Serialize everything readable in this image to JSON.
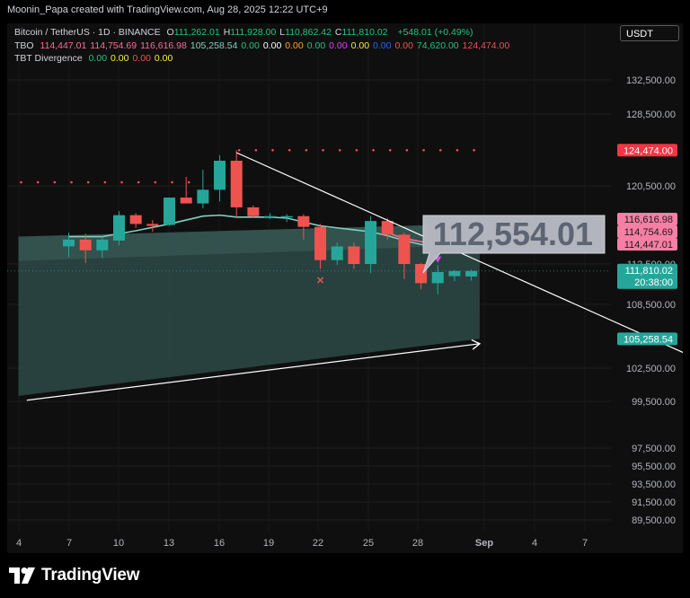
{
  "header": {
    "attribution": "Moonin_Papa created with TradingView.com, Aug 28, 2025 12:22 UTC+9"
  },
  "legend": {
    "symbol": "Bitcoin / TetherUS · 1D · BINANCE",
    "ohlc": [
      {
        "label": "O",
        "value": "111,262.01"
      },
      {
        "label": "H",
        "value": "111,928.00"
      },
      {
        "label": "L",
        "value": "110,862.42"
      },
      {
        "label": "C",
        "value": "111,810.02"
      }
    ],
    "change": "+548.01 (+0.49%)",
    "tbo": {
      "name": "TBO",
      "values": [
        {
          "text": "114,447.01",
          "color": "#ff6b9a"
        },
        {
          "text": "114,754.69",
          "color": "#ff6b9a"
        },
        {
          "text": "116,616.98",
          "color": "#ff6b9a"
        },
        {
          "text": "105,258.54",
          "color": "#7dd3c0"
        },
        {
          "text": "0.00",
          "color": "#26c281"
        },
        {
          "text": "0.00",
          "color": "#ffffff"
        },
        {
          "text": "0.00",
          "color": "#f5a623"
        },
        {
          "text": "0.00",
          "color": "#26c281"
        },
        {
          "text": "0.00",
          "color": "#e040fb"
        },
        {
          "text": "0.00",
          "color": "#ffeb3b"
        },
        {
          "text": "0.00",
          "color": "#2962ff"
        },
        {
          "text": "0.00",
          "color": "#ef5350"
        },
        {
          "text": "74,620.00",
          "color": "#26c281"
        },
        {
          "text": "124,474.00",
          "color": "#ef5350"
        }
      ]
    },
    "divergence": {
      "name": "TBT Divergence",
      "values": [
        {
          "text": "0.00",
          "color": "#26c281"
        },
        {
          "text": "0.00",
          "color": "#ffeb3b"
        },
        {
          "text": "0.00",
          "color": "#ef5350"
        },
        {
          "text": "0.00",
          "color": "#ffeb3b"
        }
      ]
    }
  },
  "currency_button": "USDT",
  "brand": "TradingView",
  "colors": {
    "up": "#26a69a",
    "down": "#ef5350",
    "teal_line": "#7dd3c0",
    "pink_line": "#ff6b9a",
    "cloud": "#3a5a57",
    "price_label_up": "#26a69a",
    "price_label_pink": "#f77fa6",
    "price_label_red": "#f23645",
    "callout_bg": "#b2b5be",
    "callout_text": "#5d6573"
  },
  "chart_data": {
    "type": "candlestick",
    "symbol": "Bitcoin / TetherUS",
    "interval": "1D",
    "exchange": "BINANCE",
    "x_labels": [
      "4",
      "7",
      "10",
      "13",
      "16",
      "19",
      "22",
      "25",
      "28",
      "Sep",
      "4",
      "7"
    ],
    "y_ticks": [
      "132,500.00",
      "128,500.00",
      "120,500.00",
      "112,500.00",
      "108,500.00",
      "102,500.00",
      "99,500.00",
      "97,500.00",
      "95,500.00",
      "93,500.00",
      "91,500.00",
      "89,500.00"
    ],
    "price_labels": [
      {
        "text": "124,474.00",
        "price": 124474,
        "style": "red"
      },
      {
        "text": "116,616.98",
        "price": 116617,
        "style": "pink"
      },
      {
        "text": "114,754.69",
        "price": 114755,
        "style": "pink"
      },
      {
        "text": "114,447.01",
        "price": 114447,
        "style": "pink"
      },
      {
        "text": "111,810.02",
        "price": 111810,
        "style": "up",
        "countdown": "20:38:00"
      },
      {
        "text": "105,258.54",
        "price": 105259,
        "style": "up"
      }
    ],
    "callout": {
      "text": "112,554.01",
      "price": 112554
    },
    "candles": [
      {
        "d": 3,
        "o": 114300,
        "h": 115700,
        "l": 113200,
        "c": 115000
      },
      {
        "d": 4,
        "o": 115000,
        "h": 115600,
        "l": 112600,
        "c": 113900
      },
      {
        "d": 5,
        "o": 113900,
        "h": 115300,
        "l": 113100,
        "c": 115000
      },
      {
        "d": 6,
        "o": 114900,
        "h": 117900,
        "l": 114400,
        "c": 117500
      },
      {
        "d": 7,
        "o": 117500,
        "h": 117700,
        "l": 116200,
        "c": 116600
      },
      {
        "d": 8,
        "o": 116600,
        "h": 117000,
        "l": 115800,
        "c": 116400
      },
      {
        "d": 9,
        "o": 116500,
        "h": 119300,
        "l": 116400,
        "c": 119300
      },
      {
        "d": 10,
        "o": 119300,
        "h": 121500,
        "l": 118700,
        "c": 118700
      },
      {
        "d": 11,
        "o": 118700,
        "h": 122300,
        "l": 118200,
        "c": 120100
      },
      {
        "d": 12,
        "o": 120100,
        "h": 123900,
        "l": 118900,
        "c": 123300
      },
      {
        "d": 13,
        "o": 123300,
        "h": 124474,
        "l": 117200,
        "c": 118300
      },
      {
        "d": 14,
        "o": 118300,
        "h": 118500,
        "l": 117200,
        "c": 117400
      },
      {
        "d": 15,
        "o": 117400,
        "h": 117700,
        "l": 117100,
        "c": 117400
      },
      {
        "d": 16,
        "o": 117400,
        "h": 117600,
        "l": 116800,
        "c": 117400
      },
      {
        "d": 17,
        "o": 117400,
        "h": 117600,
        "l": 115000,
        "c": 116300
      },
      {
        "d": 18,
        "o": 116300,
        "h": 116600,
        "l": 112000,
        "c": 112900
      },
      {
        "d": 19,
        "o": 112900,
        "h": 114700,
        "l": 112400,
        "c": 114300
      },
      {
        "d": 20,
        "o": 114300,
        "h": 114700,
        "l": 112000,
        "c": 112500
      },
      {
        "d": 21,
        "o": 112500,
        "h": 117400,
        "l": 111600,
        "c": 116900
      },
      {
        "d": 22,
        "o": 116900,
        "h": 117200,
        "l": 115000,
        "c": 115500
      },
      {
        "d": 23,
        "o": 115500,
        "h": 115700,
        "l": 111000,
        "c": 112500
      },
      {
        "d": 24,
        "o": 112500,
        "h": 112600,
        "l": 110000,
        "c": 110600
      },
      {
        "d": 25,
        "o": 110600,
        "h": 112400,
        "l": 109500,
        "c": 111700
      },
      {
        "d": 26,
        "o": 111300,
        "h": 111900,
        "l": 110800,
        "c": 111800
      },
      {
        "d": 27,
        "o": 111262,
        "h": 111928,
        "l": 110862,
        "c": 111810
      }
    ],
    "teal_line": [
      [
        3,
        115300
      ],
      [
        5,
        115300
      ],
      [
        7,
        115900
      ],
      [
        9,
        116600
      ],
      [
        10,
        117000
      ],
      [
        11,
        117400
      ],
      [
        12,
        117500
      ],
      [
        13,
        117300
      ],
      [
        15,
        117300
      ],
      [
        16,
        117200
      ],
      [
        17,
        116800
      ],
      [
        18,
        116400
      ],
      [
        19,
        116200
      ],
      [
        20,
        116000
      ],
      [
        21,
        115800
      ],
      [
        22,
        115400
      ],
      [
        23,
        114900
      ],
      [
        24,
        114500
      ],
      [
        25,
        114200
      ],
      [
        26,
        114000
      ],
      [
        27,
        113700
      ]
    ],
    "pink_line": [
      [
        22,
        115700
      ],
      [
        23,
        115100
      ],
      [
        24,
        114800
      ],
      [
        25,
        114550
      ],
      [
        26,
        114450
      ],
      [
        27,
        114447
      ]
    ],
    "red_dots": [
      {
        "price": 120900,
        "days": [
          0,
          1,
          2,
          3,
          4,
          5,
          6,
          7,
          8,
          9,
          10
        ]
      },
      {
        "price": 124474,
        "days": [
          13,
          14,
          15,
          16,
          17,
          18,
          19,
          20,
          21,
          22,
          23,
          24,
          25,
          26,
          27
        ]
      }
    ],
    "markers": [
      {
        "type": "cross",
        "d": 18,
        "price": 110900,
        "color": "#ef5350"
      },
      {
        "type": "triangle-down",
        "d": 25,
        "price": 112900,
        "color": "#d14fe8"
      }
    ],
    "trendlines": [
      {
        "from": [
          13,
          124200
        ],
        "to": [
          41,
          103000
        ]
      },
      {
        "from": [
          0.5,
          99600
        ],
        "to": [
          27.5,
          104800
        ],
        "arrow": true
      }
    ],
    "cloud": {
      "x0": 0,
      "x1": 27.5,
      "top": [
        [
          0,
          115300
        ],
        [
          27.5,
          116617
        ]
      ],
      "bottom": [
        [
          0,
          100000
        ],
        [
          27.5,
          105259
        ]
      ]
    }
  }
}
